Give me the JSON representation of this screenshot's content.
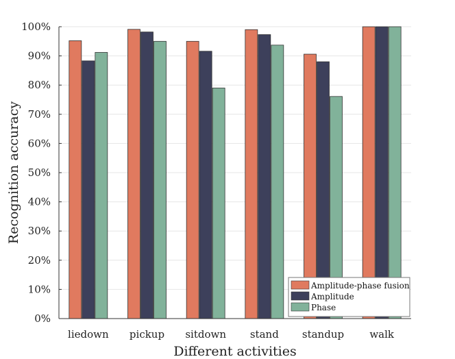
{
  "chart_data": {
    "type": "bar",
    "xlabel": "Different activities",
    "ylabel": "Recognition accuracy",
    "ylim": [
      0,
      100
    ],
    "yticks": [
      0,
      10,
      20,
      30,
      40,
      50,
      60,
      70,
      80,
      90,
      100
    ],
    "ytick_labels": [
      "0%",
      "10%",
      "20%",
      "30%",
      "40%",
      "50%",
      "60%",
      "70%",
      "80%",
      "90%",
      "100%"
    ],
    "grid": true,
    "legend_position": "bottom-right",
    "categories": [
      "liedown",
      "pickup",
      "sitdown",
      "stand",
      "standup",
      "walk"
    ],
    "series": [
      {
        "name": "Amplitude-phase fusion",
        "color": "#e07a5f",
        "values": [
          95.2,
          99.1,
          95.0,
          99.0,
          90.6,
          100
        ]
      },
      {
        "name": "Amplitude",
        "color": "#3d405b",
        "values": [
          88.3,
          98.2,
          91.6,
          97.3,
          88.0,
          100
        ]
      },
      {
        "name": "Phase",
        "color": "#81b29a",
        "values": [
          91.2,
          95.0,
          79.0,
          93.7,
          76.1,
          100
        ]
      }
    ]
  }
}
